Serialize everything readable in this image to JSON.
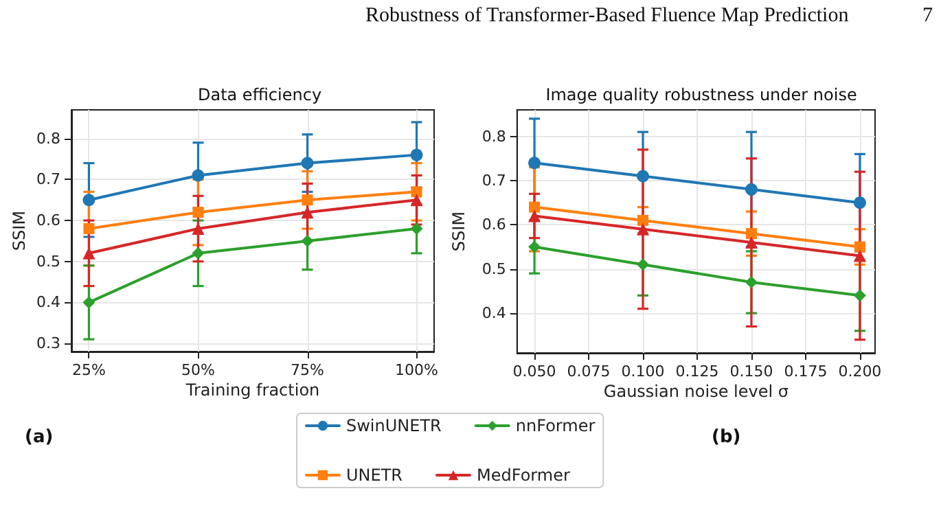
{
  "chart_data": [
    {
      "type": "line",
      "title": "Data efficiency",
      "xlabel": "Training fraction",
      "ylabel": "SSIM",
      "categories": [
        "25%",
        "50%",
        "75%",
        "100%"
      ],
      "ylim": [
        0.28,
        0.87
      ],
      "yticks": [
        0.3,
        0.4,
        0.5,
        0.6,
        0.7,
        0.8
      ],
      "grid": true,
      "legend": "bottom",
      "annotations": [
        "Robustness of Transformer-Based Fluence Map Prediction",
        "7",
        "(a)"
      ],
      "series": [
        {
          "name": "SwinUNETR",
          "color": "#1f77b4",
          "marker": "circle",
          "values": [
            0.65,
            0.71,
            0.74,
            0.76
          ],
          "errors": [
            0.09,
            0.08,
            0.07,
            0.08
          ]
        },
        {
          "name": "UNETR",
          "color": "#ff7f0e",
          "marker": "square",
          "values": [
            0.58,
            0.62,
            0.65,
            0.67
          ],
          "errors": [
            0.09,
            0.08,
            0.07,
            0.07
          ]
        },
        {
          "name": "nnFormer",
          "color": "#2ca02c",
          "marker": "diamond",
          "values": [
            0.4,
            0.52,
            0.55,
            0.58
          ],
          "errors": [
            0.09,
            0.08,
            0.07,
            0.06
          ]
        },
        {
          "name": "MedFormer",
          "color": "#d62728",
          "marker": "triangle",
          "values": [
            0.52,
            0.58,
            0.62,
            0.65
          ],
          "errors": [
            0.08,
            0.08,
            0.07,
            0.06
          ]
        }
      ]
    },
    {
      "type": "line",
      "title": "Image quality robustness under noise",
      "xlabel": "Gaussian noise level σ",
      "ylabel": "SSIM",
      "x": [
        0.05,
        0.1,
        0.15,
        0.2
      ],
      "xlim": [
        0.042,
        0.207
      ],
      "xticks": [
        {
          "value": 0.05,
          "label": "0.050"
        },
        {
          "value": 0.075,
          "label": "0.075"
        },
        {
          "value": 0.1,
          "label": "0.100"
        },
        {
          "value": 0.125,
          "label": "0.125"
        },
        {
          "value": 0.15,
          "label": "0.150"
        },
        {
          "value": 0.175,
          "label": "0.175"
        },
        {
          "value": 0.2,
          "label": "0.200"
        }
      ],
      "ylim": [
        0.31,
        0.86
      ],
      "yticks": [
        0.4,
        0.5,
        0.6,
        0.7,
        0.8
      ],
      "grid": true,
      "annotations": [
        "(b)"
      ],
      "series": [
        {
          "color": "#1f77b4",
          "marker": "circle",
          "values": [
            0.74,
            0.71,
            0.68,
            0.65
          ],
          "errors": [
            0.1,
            0.1,
            0.13,
            0.11
          ]
        },
        {
          "color": "#ff7f0e",
          "marker": "square",
          "values": [
            0.64,
            0.61,
            0.58,
            0.55
          ],
          "errors": [
            [
              0.54,
              0.73
            ],
            0.03,
            0.05,
            0.04
          ]
        },
        {
          "color": "#2ca02c",
          "marker": "diamond",
          "values": [
            0.55,
            0.51,
            0.47,
            0.44
          ],
          "errors": [
            0.06,
            0.07,
            0.07,
            0.08
          ]
        },
        {
          "color": "#d62728",
          "marker": "triangle",
          "values": [
            0.62,
            0.59,
            0.56,
            0.53
          ],
          "errors": [
            0.05,
            0.18,
            0.19,
            0.19
          ]
        }
      ]
    }
  ]
}
